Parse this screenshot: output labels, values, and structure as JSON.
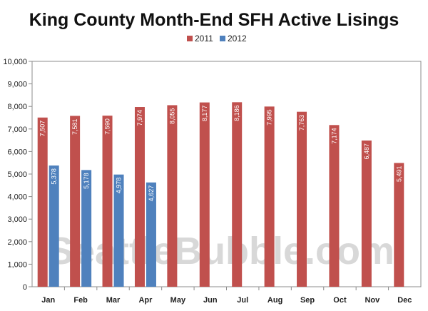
{
  "chart_data": {
    "type": "bar",
    "title": "King County Month-End SFH Active Lisings",
    "categories": [
      "Jan",
      "Feb",
      "Mar",
      "Apr",
      "May",
      "Jun",
      "Jul",
      "Aug",
      "Sep",
      "Oct",
      "Nov",
      "Dec"
    ],
    "series": [
      {
        "name": "2011",
        "color": "#c0504d",
        "values": [
          7507,
          7581,
          7590,
          7974,
          8055,
          8177,
          8186,
          7995,
          7763,
          7174,
          6487,
          5491
        ],
        "labels": [
          "7,507",
          "7,581",
          "7,590",
          "7,974",
          "8,055",
          "8,177",
          "8,186",
          "7,995",
          "7,763",
          "7,174",
          "6,487",
          "5,491"
        ]
      },
      {
        "name": "2012",
        "color": "#4f81bd",
        "values": [
          5378,
          5178,
          4978,
          4627,
          null,
          null,
          null,
          null,
          null,
          null,
          null,
          null
        ],
        "labels": [
          "5,378",
          "5,178",
          "4,978",
          "4,627",
          null,
          null,
          null,
          null,
          null,
          null,
          null,
          null
        ]
      }
    ],
    "ylim": [
      0,
      10000
    ],
    "yticks": [
      0,
      1000,
      2000,
      3000,
      4000,
      5000,
      6000,
      7000,
      8000,
      9000,
      10000
    ],
    "ytick_labels": [
      "0",
      "1,000",
      "2,000",
      "3,000",
      "4,000",
      "5,000",
      "6,000",
      "7,000",
      "8,000",
      "9,000",
      "10,000"
    ],
    "legend_position": "top-center",
    "grid": false,
    "watermark": "SeattleBubble.com"
  }
}
